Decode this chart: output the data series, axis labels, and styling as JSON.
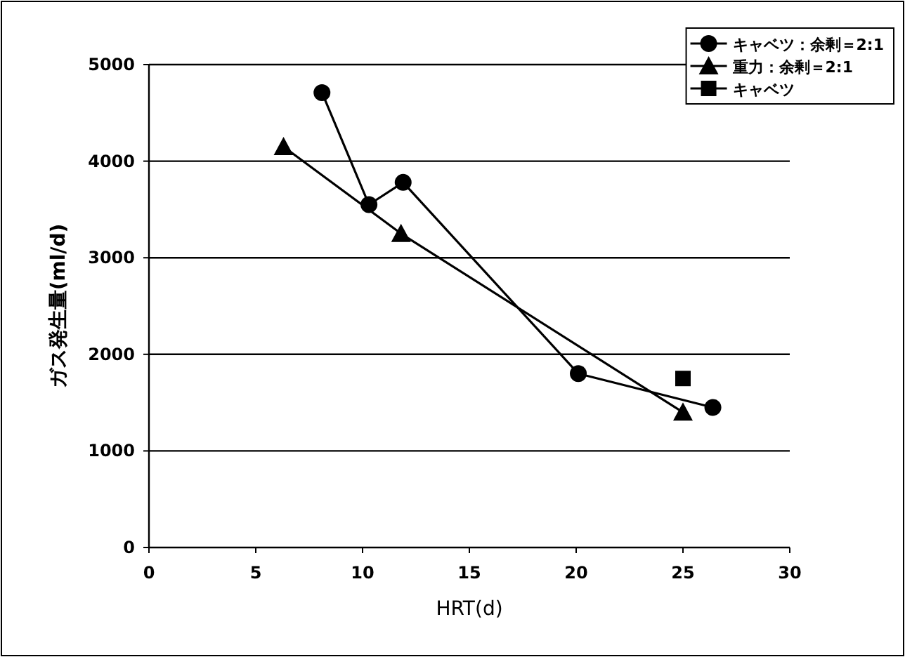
{
  "chart_data": {
    "type": "line",
    "xlabel": "HRT(d)",
    "ylabel": "ガス発生量(ml/d)",
    "xlim": [
      0,
      30
    ],
    "xticks": [
      0,
      5,
      10,
      15,
      20,
      25,
      30
    ],
    "ylim": [
      0,
      5000
    ],
    "yticks": [
      0,
      1000,
      2000,
      3000,
      4000,
      5000
    ],
    "grid": "y",
    "legend": "top right",
    "line_style": "solid",
    "series": [
      {
        "name": "キャベツ：余剰＝2:1",
        "color": "#000000",
        "marker": "circle",
        "x": [
          8.1,
          10.3,
          11.9,
          20.1,
          26.4
        ],
        "values": [
          4710,
          3550,
          3780,
          1800,
          1450
        ]
      },
      {
        "name": "重力：余剰＝2:1",
        "color": "#000000",
        "marker": "triangle",
        "x": [
          6.3,
          11.8,
          25.0
        ],
        "values": [
          4150,
          3250,
          1400
        ]
      },
      {
        "name": "キャベツ",
        "color": "#000000",
        "marker": "square",
        "x": [
          25.0
        ],
        "values": [
          1750
        ]
      }
    ]
  }
}
